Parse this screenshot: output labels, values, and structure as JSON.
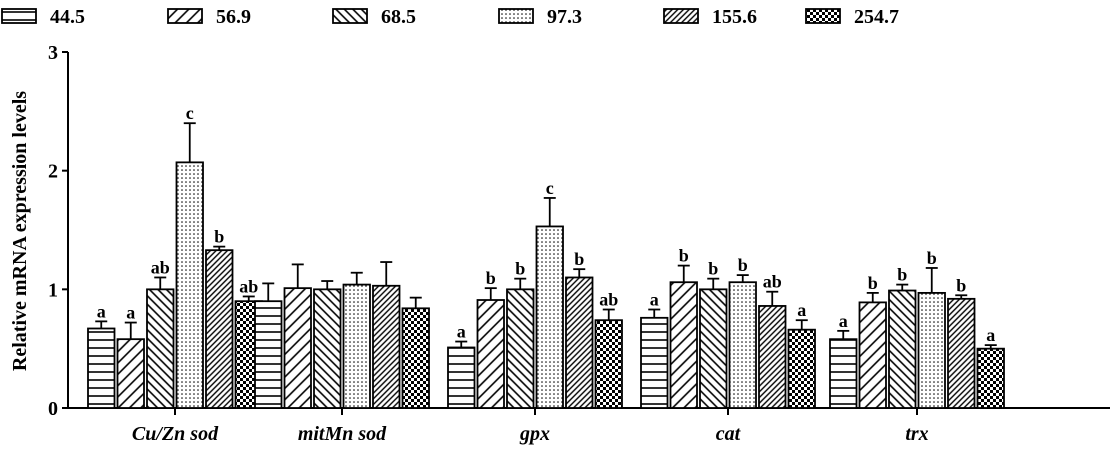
{
  "chart_data": {
    "type": "bar",
    "title": "",
    "xlabel": "",
    "ylabel": "Relative mRNA expression levels",
    "ylim": [
      0,
      3
    ],
    "yticks": [
      "0",
      "1",
      "2",
      "3"
    ],
    "grid": false,
    "legend_position": "top",
    "categories": [
      "Cu/Zn sod",
      "mitMn sod",
      "gpx",
      "cat",
      "trx"
    ],
    "series": [
      {
        "name": "44.5",
        "pattern": "horizontal-lines",
        "values": [
          0.67,
          0.9,
          0.51,
          0.76,
          0.58
        ],
        "errors": [
          0.06,
          0.15,
          0.05,
          0.07,
          0.07
        ],
        "labels": [
          "a",
          "",
          "a",
          "a",
          "a"
        ]
      },
      {
        "name": "56.9",
        "pattern": "forward-diagonal",
        "values": [
          0.58,
          1.01,
          0.91,
          1.06,
          0.89
        ],
        "errors": [
          0.14,
          0.2,
          0.1,
          0.14,
          0.08
        ],
        "labels": [
          "a",
          "",
          "b",
          "b",
          "b"
        ]
      },
      {
        "name": "68.5",
        "pattern": "backward-diagonal",
        "values": [
          1.0,
          1.0,
          1.0,
          1.0,
          0.99
        ],
        "errors": [
          0.1,
          0.07,
          0.09,
          0.09,
          0.05
        ],
        "labels": [
          "ab",
          "",
          "b",
          "b",
          "b"
        ]
      },
      {
        "name": "97.3",
        "pattern": "dots",
        "values": [
          2.07,
          1.04,
          1.53,
          1.06,
          0.97
        ],
        "errors": [
          0.33,
          0.1,
          0.24,
          0.06,
          0.21
        ],
        "labels": [
          "c",
          "",
          "c",
          "b",
          "b"
        ]
      },
      {
        "name": "155.6",
        "pattern": "dense-diagonal",
        "values": [
          1.33,
          1.03,
          1.1,
          0.86,
          0.92
        ],
        "errors": [
          0.03,
          0.2,
          0.07,
          0.12,
          0.03
        ],
        "labels": [
          "b",
          "",
          "b",
          "ab",
          "b"
        ]
      },
      {
        "name": "254.7",
        "pattern": "checkerboard",
        "values": [
          0.9,
          0.84,
          0.74,
          0.66,
          0.5
        ],
        "errors": [
          0.04,
          0.09,
          0.09,
          0.08,
          0.03
        ],
        "labels": [
          "ab",
          "",
          "ab",
          "a",
          "a"
        ]
      }
    ]
  }
}
